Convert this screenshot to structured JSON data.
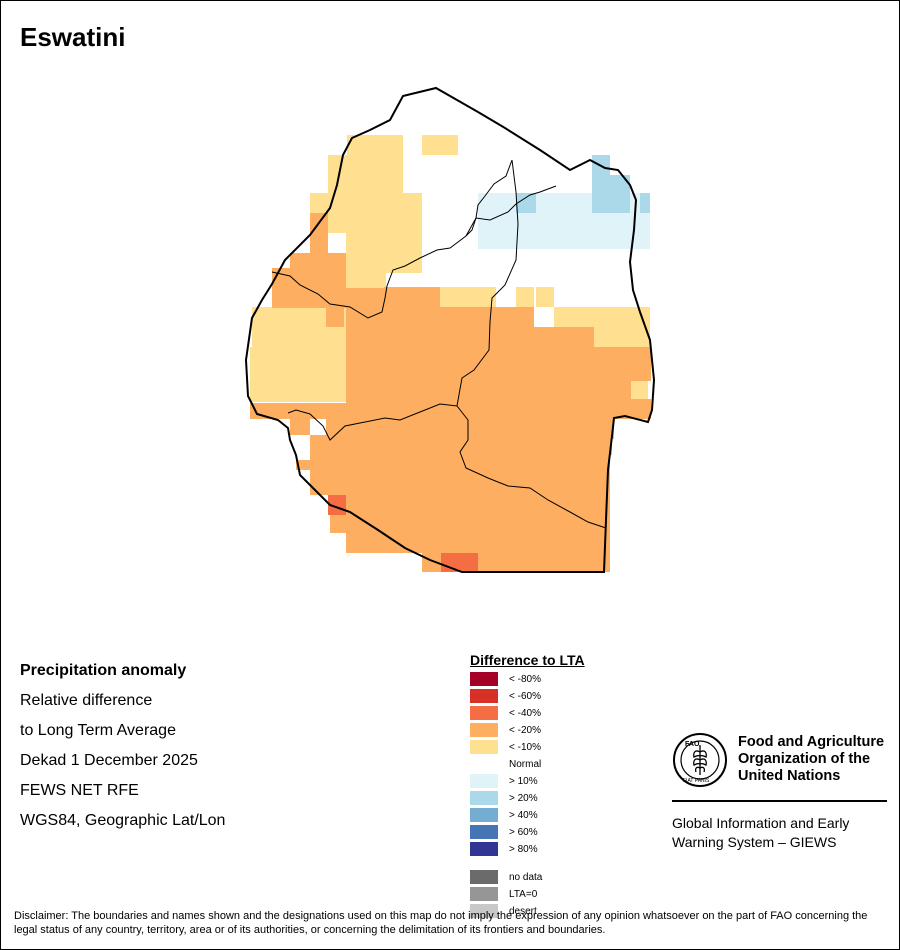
{
  "title": "Eswatini",
  "info": {
    "heading": "Precipitation anomaly",
    "line1": "Relative difference",
    "line2": "to Long Term Average",
    "period": "Dekad 1 December 2025",
    "source": "FEWS NET RFE",
    "projection": "WGS84, Geographic Lat/Lon"
  },
  "legend": {
    "title": "Difference to LTA",
    "items": [
      {
        "label": "< -80%",
        "color": "#a50026"
      },
      {
        "label": "< -60%",
        "color": "#d73027"
      },
      {
        "label": "< -40%",
        "color": "#f46d43"
      },
      {
        "label": "< -20%",
        "color": "#fdae61"
      },
      {
        "label": "< -10%",
        "color": "#fee090"
      },
      {
        "label": "Normal",
        "color": "#ffffff"
      },
      {
        "label": "> 10%",
        "color": "#e0f3f8"
      },
      {
        "label": "> 20%",
        "color": "#abd9e9"
      },
      {
        "label": "> 40%",
        "color": "#74add1"
      },
      {
        "label": "> 60%",
        "color": "#4575b4"
      },
      {
        "label": "> 80%",
        "color": "#313695"
      }
    ],
    "extra": [
      {
        "label": "no data",
        "color": "#6b6b6b"
      },
      {
        "label": "LTA=0",
        "color": "#969696"
      },
      {
        "label": "desert",
        "color": "#c8c8c8"
      }
    ]
  },
  "fao": {
    "logo_text": "FAO",
    "logo_motto": "FIAT PANIS",
    "name": [
      "Food and Agriculture",
      "Organization of the",
      "United Nations"
    ],
    "giews": [
      "Global Information and Early",
      "Warning System – GIEWS"
    ]
  },
  "disclaimer": "Disclaimer: The boundaries and names shown and the designations used on this map do not imply the expression of any opinion whatsoever on the part of FAO concerning the legal status of any country, territory, area or of its authorities, or concerning the delimitation of its frontiers and boundaries.",
  "colors": {
    "m10": "#fee090",
    "m20": "#fdae61",
    "m40": "#f46d43",
    "p10": "#e0f3f8",
    "p20": "#abd9e9",
    "border": "#000000"
  }
}
